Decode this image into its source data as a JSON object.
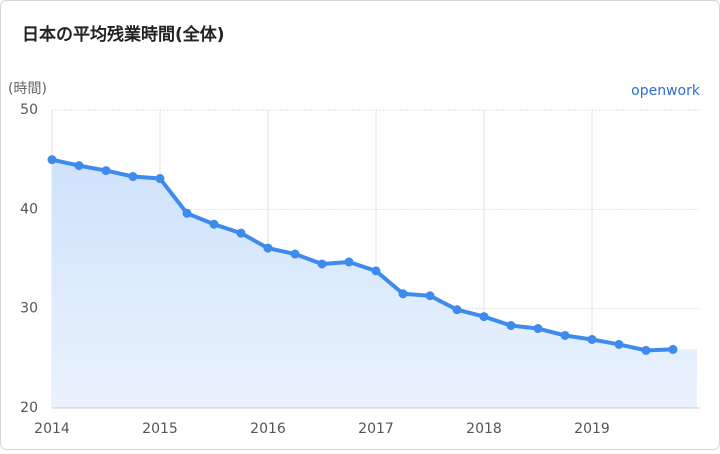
{
  "chart_data": {
    "type": "line",
    "title": "日本の平均残業時間(全体)",
    "y_label": "(時間)",
    "logo": "openwork",
    "x": [
      2014,
      2014.25,
      2014.5,
      2014.75,
      2015,
      2015.25,
      2015.5,
      2015.75,
      2016,
      2016.25,
      2016.5,
      2016.75,
      2017,
      2017.25,
      2017.5,
      2017.75,
      2018,
      2018.25,
      2018.5,
      2018.75,
      2019,
      2019.25,
      2019.5,
      2019.75
    ],
    "series": [
      {
        "color": "#3d8bec",
        "values": [
          45.0,
          44.4,
          43.9,
          43.3,
          43.1,
          39.6,
          38.5,
          37.6,
          36.1,
          35.5,
          34.5,
          34.7,
          33.8,
          31.5,
          31.3,
          29.9,
          29.2,
          28.3,
          28.0,
          27.3,
          26.9,
          26.4,
          25.8,
          25.9
        ]
      }
    ],
    "xlim": [
      2014,
      2020
    ],
    "xticks": [
      2014,
      2015,
      2016,
      2017,
      2018,
      2019
    ],
    "ylim": [
      20,
      50
    ],
    "yticks": [
      20,
      30,
      40,
      50
    ],
    "grid": true,
    "area": true
  }
}
